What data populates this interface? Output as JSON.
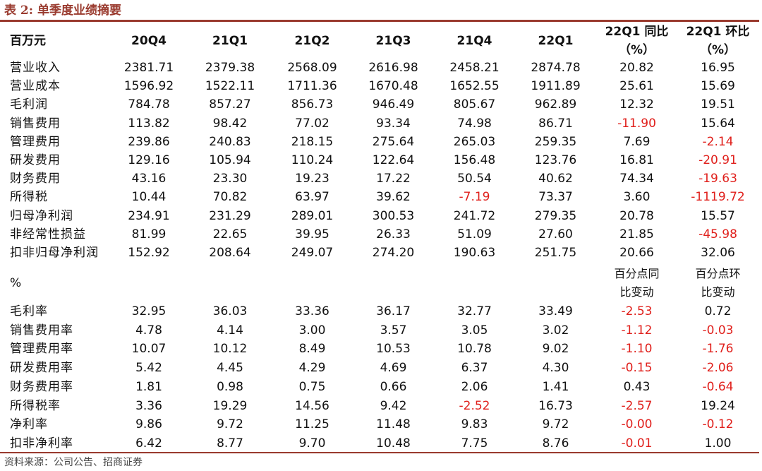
{
  "title": "表 2:  单季度业绩摘要",
  "header": {
    "unit": "百万元",
    "quarters": [
      "20Q4",
      "21Q1",
      "21Q2",
      "21Q3",
      "21Q4",
      "22Q1"
    ],
    "yoy_line1": "22Q1 同比",
    "yoy_line2": "（%）",
    "qoq_line1": "22Q1 环比",
    "qoq_line2": "（%）"
  },
  "rows": [
    {
      "label": "营业收入",
      "values": [
        "2381.71",
        "2379.38",
        "2568.09",
        "2616.98",
        "2458.21",
        "2874.78",
        "20.82",
        "16.95"
      ]
    },
    {
      "label": "营业成本",
      "values": [
        "1596.92",
        "1522.11",
        "1711.36",
        "1670.48",
        "1652.55",
        "1911.89",
        "25.61",
        "15.69"
      ]
    },
    {
      "label": "毛利润",
      "values": [
        "784.78",
        "857.27",
        "856.73",
        "946.49",
        "805.67",
        "962.89",
        "12.32",
        "19.51"
      ]
    },
    {
      "label": "销售费用",
      "values": [
        "113.82",
        "98.42",
        "77.02",
        "93.34",
        "74.98",
        "86.71",
        "-11.90",
        "15.64"
      ]
    },
    {
      "label": "管理费用",
      "values": [
        "239.86",
        "240.83",
        "218.15",
        "275.64",
        "265.03",
        "259.35",
        "7.69",
        "-2.14"
      ]
    },
    {
      "label": "研发费用",
      "values": [
        "129.16",
        "105.94",
        "110.24",
        "122.64",
        "156.48",
        "123.76",
        "16.81",
        "-20.91"
      ]
    },
    {
      "label": "财务费用",
      "values": [
        "43.16",
        "23.30",
        "19.23",
        "17.22",
        "50.54",
        "40.62",
        "74.34",
        "-19.63"
      ]
    },
    {
      "label": "所得税",
      "values": [
        "10.44",
        "70.82",
        "63.97",
        "39.62",
        "-7.19",
        "73.37",
        "3.60",
        "-1119.72"
      ]
    },
    {
      "label": "归母净利润",
      "values": [
        "234.91",
        "231.29",
        "289.01",
        "300.53",
        "241.72",
        "279.35",
        "20.78",
        "15.57"
      ]
    },
    {
      "label": "非经常性损益",
      "values": [
        "81.99",
        "22.65",
        "39.95",
        "26.33",
        "51.09",
        "27.60",
        "21.85",
        "-45.98"
      ]
    },
    {
      "label": "扣非归母净利润",
      "values": [
        "152.92",
        "208.64",
        "249.07",
        "274.20",
        "190.63",
        "251.75",
        "20.66",
        "32.06"
      ]
    }
  ],
  "ratio_header": {
    "unit": "%",
    "yoy_line1": "百分点同",
    "yoy_line2": "比变动",
    "qoq_line1": "百分点环",
    "qoq_line2": "比变动"
  },
  "ratio_rows": [
    {
      "label": "毛利率",
      "values": [
        "32.95",
        "36.03",
        "33.36",
        "36.17",
        "32.77",
        "33.49",
        "-2.53",
        "0.72"
      ]
    },
    {
      "label": "销售费用率",
      "values": [
        "4.78",
        "4.14",
        "3.00",
        "3.57",
        "3.05",
        "3.02",
        "-1.12",
        "-0.03"
      ]
    },
    {
      "label": "管理费用率",
      "values": [
        "10.07",
        "10.12",
        "8.49",
        "10.53",
        "10.78",
        "9.02",
        "-1.10",
        "-1.76"
      ]
    },
    {
      "label": "研发费用率",
      "values": [
        "5.42",
        "4.45",
        "4.29",
        "4.69",
        "6.37",
        "4.30",
        "-0.15",
        "-2.06"
      ]
    },
    {
      "label": "财务费用率",
      "values": [
        "1.81",
        "0.98",
        "0.75",
        "0.66",
        "2.06",
        "1.41",
        "0.43",
        "-0.64"
      ]
    },
    {
      "label": "所得税率",
      "values": [
        "3.36",
        "19.29",
        "14.56",
        "9.42",
        "-2.52",
        "16.73",
        "-2.57",
        "19.24"
      ]
    },
    {
      "label": "净利率",
      "values": [
        "9.86",
        "9.72",
        "11.25",
        "11.48",
        "9.83",
        "9.72",
        "-0.00",
        "-0.12"
      ]
    },
    {
      "label": "扣非净利率",
      "values": [
        "6.42",
        "8.77",
        "9.70",
        "10.48",
        "7.75",
        "8.76",
        "-0.01",
        "1.00"
      ]
    }
  ],
  "source": "资料来源：公司公告、招商证券",
  "colors": {
    "accent": "#9a3b2f",
    "negative": "#e0201c"
  }
}
